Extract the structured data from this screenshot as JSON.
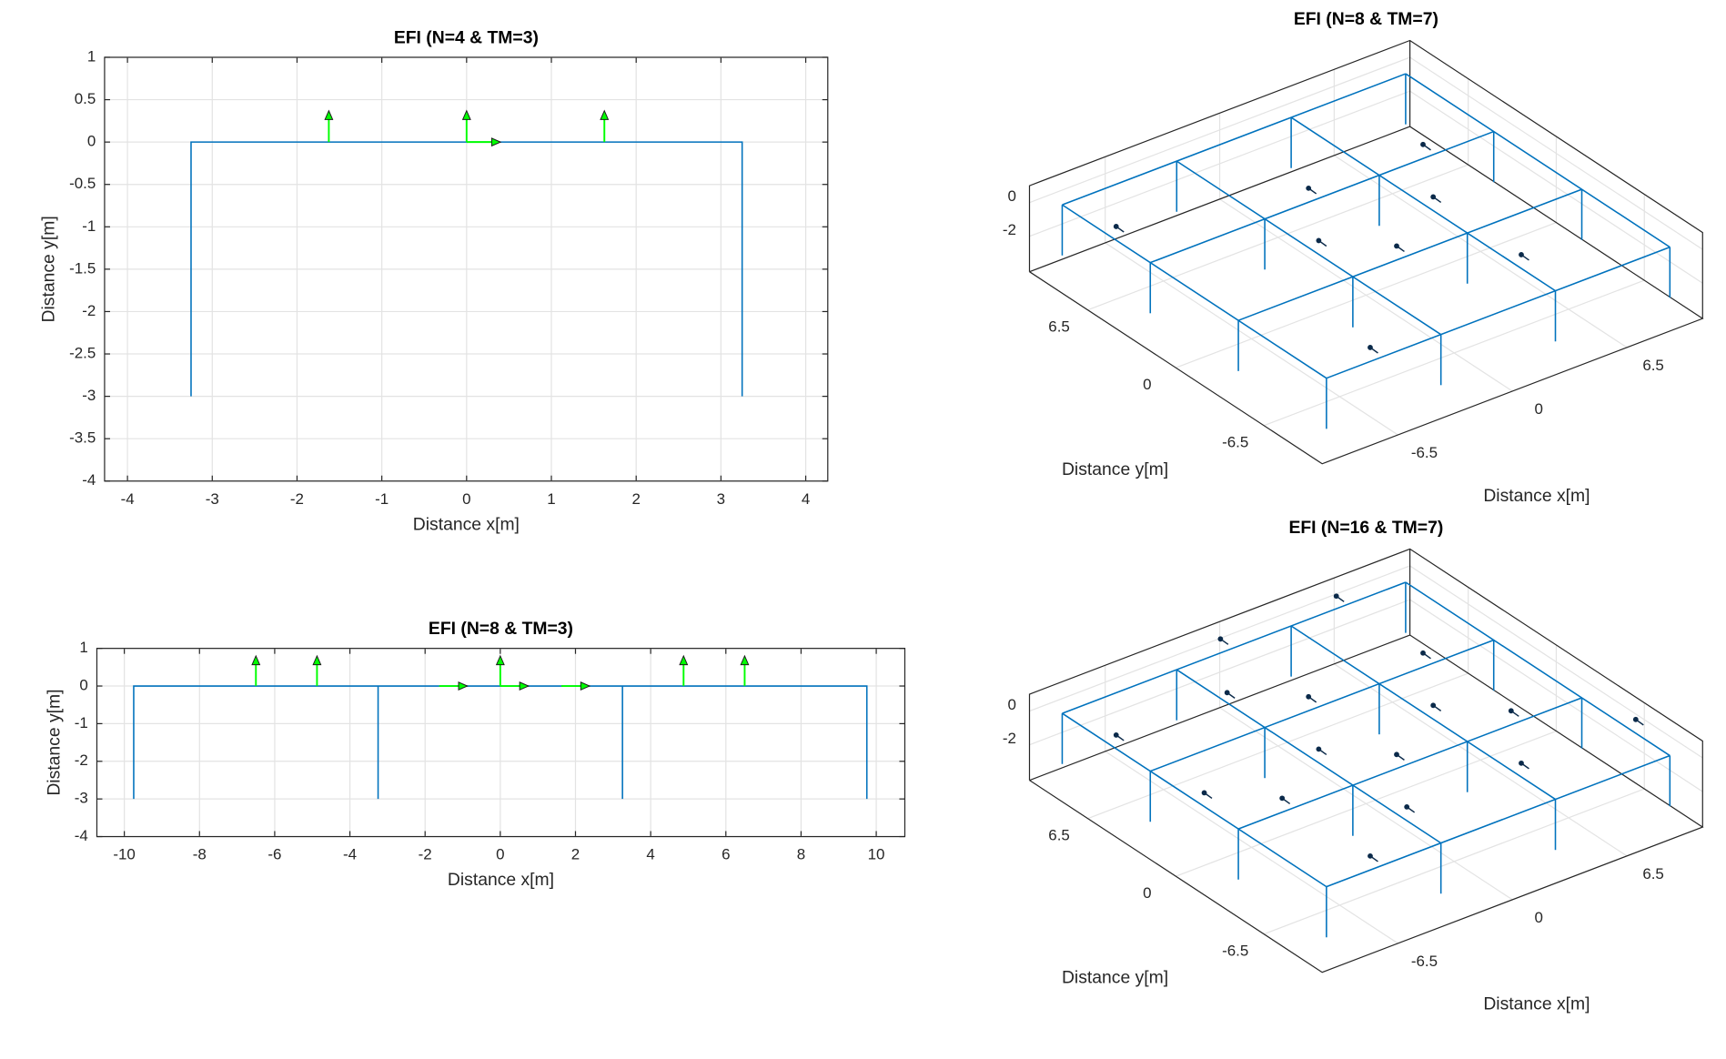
{
  "chart_data": [
    {
      "type": "frame2d",
      "title": "EFI (N=4 & TM=3)",
      "xlabel": "Distance x[m]",
      "ylabel": "Distance y[m]",
      "xlim": [
        -4.27,
        4.26
      ],
      "ylim": [
        -4,
        1
      ],
      "xticks": [
        -4,
        -3,
        -2,
        -1,
        0,
        1,
        2,
        3,
        4
      ],
      "yticks": [
        -4,
        -3.5,
        -3,
        -2.5,
        -2,
        -1.5,
        -1,
        -0.5,
        0,
        0.5,
        1
      ],
      "grid": true,
      "frame": {
        "x": [
          -3.25,
          -3.25,
          3.25,
          3.25
        ],
        "y": [
          -3,
          0,
          0,
          -3
        ],
        "color": "#0072bd"
      },
      "arrows": {
        "x": [
          -1.625,
          0,
          1.625,
          0
        ],
        "y": [
          0,
          0,
          0,
          0
        ],
        "u": [
          0,
          0,
          0,
          0.4
        ],
        "v": [
          0.37,
          0.37,
          0.37,
          0
        ],
        "color": "#00ff00"
      }
    },
    {
      "type": "frame2d",
      "title": "EFI (N=8 & TM=3)",
      "xlabel": "Distance x[m]",
      "ylabel": "Distance y[m]",
      "xlim": [
        -10.73,
        10.76
      ],
      "ylim": [
        -4,
        1
      ],
      "xticks": [
        -10,
        -8,
        -6,
        -4,
        -2,
        0,
        2,
        4,
        6,
        8,
        10
      ],
      "yticks": [
        -4,
        -3,
        -2,
        -1,
        0,
        1
      ],
      "grid": true,
      "frame": {
        "x": [
          -9.75,
          -9.75,
          9.75,
          9.75,
          null,
          -3.25,
          -3.25,
          null,
          3.25,
          3.25
        ],
        "y": [
          -3,
          0,
          0,
          -3,
          null,
          -3,
          0,
          null,
          -3,
          0
        ],
        "color": "#0072bd"
      },
      "arrows": {
        "x": [
          -6.5,
          -4.875,
          0,
          4.875,
          6.5,
          -1.625,
          0,
          1.625
        ],
        "y": [
          0,
          0,
          0,
          0,
          0,
          0,
          0,
          0
        ],
        "u": [
          0,
          0,
          0,
          0,
          0,
          0.75,
          0.75,
          0.75
        ],
        "v": [
          0.8,
          0.8,
          0.8,
          0.8,
          0.8,
          0,
          0,
          0
        ],
        "color": "#00ff00"
      }
    },
    {
      "type": "frame3d",
      "title": "EFI (N=8 & TM=7)",
      "xlabel": "Distance x[m]",
      "ylabel": "Distance y[m]",
      "xlim": [
        -10.8,
        10.8
      ],
      "ylim": [
        -10.8,
        10.8
      ],
      "zlim": [
        -4.1,
        1
      ],
      "xticks": [
        -6.5,
        0,
        6.5
      ],
      "yticks": [
        -6.5,
        0,
        6.5
      ],
      "zticks": [
        -2,
        0
      ],
      "grid": true,
      "grid_x": [
        -9.75,
        -3.25,
        3.25,
        9.75
      ],
      "grid_y": [
        -9.75,
        -3.25,
        3.25,
        9.75
      ],
      "top_z": 0,
      "base_z": -3,
      "color": "#0072bd",
      "points": {
        "x": [
          -9,
          0,
          6.5,
          4,
          -2.5,
          0,
          4,
          -6.5
        ],
        "y": [
          6.5,
          4,
          4,
          0,
          0,
          -2.5,
          -6.5,
          -9
        ],
        "z": [
          0,
          0,
          0,
          0,
          0,
          0,
          0,
          0
        ],
        "color": "#0b2a4a"
      }
    },
    {
      "type": "frame3d",
      "title": "EFI (N=16 & TM=7)",
      "xlabel": "Distance x[m]",
      "ylabel": "Distance y[m]",
      "xlim": [
        -10.8,
        10.8
      ],
      "ylim": [
        -10.8,
        10.8
      ],
      "zlim": [
        -4.1,
        1
      ],
      "xticks": [
        -6.5,
        0,
        6.5
      ],
      "yticks": [
        -6.5,
        0,
        6.5
      ],
      "zticks": [
        -2,
        0
      ],
      "grid": true,
      "grid_x": [
        -9.75,
        -3.25,
        3.25,
        9.75
      ],
      "grid_y": [
        -9.75,
        -3.25,
        3.25,
        9.75
      ],
      "top_z": 0,
      "base_z": -3,
      "color": "#0072bd",
      "points": {
        "x": [
          6.5,
          0,
          6.5,
          -2.7,
          0,
          4,
          6.5,
          10.5,
          -9,
          -2.5,
          0,
          4,
          -9,
          -6.5,
          -2.5,
          -6.5
        ],
        "y": [
          10.4,
          10.5,
          4,
          6.5,
          4,
          0,
          -2.5,
          -6.5,
          6.5,
          0,
          -2.5,
          -6.5,
          0,
          -2.5,
          -6.5,
          -9
        ],
        "z": [
          0,
          0,
          0,
          0,
          0,
          0,
          0,
          0,
          0,
          0,
          0,
          0,
          0,
          0,
          0,
          0
        ],
        "color": "#0b2a4a"
      }
    }
  ]
}
